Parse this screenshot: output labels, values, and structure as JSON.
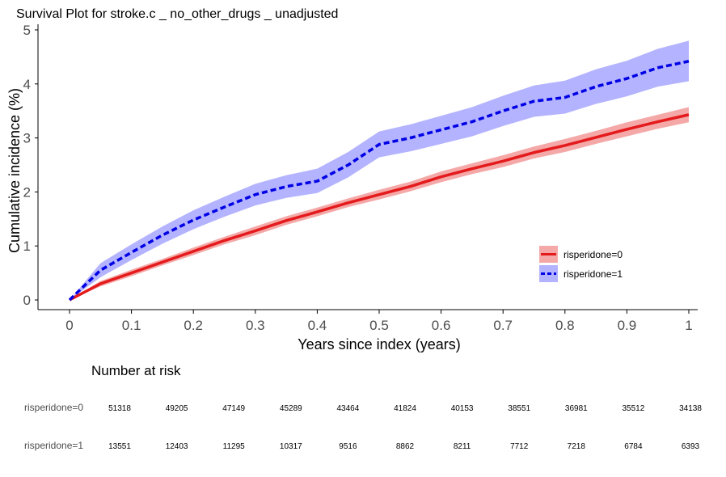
{
  "chart_data": {
    "type": "line",
    "title": "Survival Plot for stroke.c _ no_other_drugs _ unadjusted",
    "xlabel": "Years since index (years)",
    "ylabel": "Cumulative incidence (%)",
    "xlim": [
      0,
      1
    ],
    "ylim": [
      0,
      5
    ],
    "x_ticks": [
      "0",
      "0.1",
      "0.2",
      "0.3",
      "0.4",
      "0.5",
      "0.6",
      "0.7",
      "0.8",
      "0.9",
      "1"
    ],
    "y_ticks": [
      "0",
      "1",
      "2",
      "3",
      "4",
      "5"
    ],
    "legend_position": "bottom-right",
    "x": [
      0,
      0.05,
      0.1,
      0.15,
      0.2,
      0.25,
      0.3,
      0.35,
      0.4,
      0.45,
      0.5,
      0.55,
      0.6,
      0.65,
      0.7,
      0.75,
      0.8,
      0.85,
      0.9,
      0.95,
      1.0
    ],
    "series": [
      {
        "name": "risperidone=0",
        "color": "#e41a1c",
        "band_color": "#f4a9a8",
        "line_style": "solid",
        "values": [
          0,
          0.3,
          0.5,
          0.7,
          0.9,
          1.1,
          1.28,
          1.47,
          1.63,
          1.8,
          1.95,
          2.1,
          2.28,
          2.43,
          2.57,
          2.73,
          2.86,
          3.01,
          3.16,
          3.3,
          3.43
        ],
        "lower": [
          0,
          0.25,
          0.44,
          0.64,
          0.83,
          1.03,
          1.2,
          1.39,
          1.55,
          1.72,
          1.86,
          2.01,
          2.18,
          2.33,
          2.46,
          2.62,
          2.74,
          2.89,
          3.03,
          3.17,
          3.29
        ],
        "upper": [
          0,
          0.35,
          0.56,
          0.76,
          0.97,
          1.17,
          1.36,
          1.55,
          1.71,
          1.88,
          2.04,
          2.19,
          2.38,
          2.53,
          2.68,
          2.84,
          2.98,
          3.13,
          3.29,
          3.43,
          3.57
        ]
      },
      {
        "name": "risperidone=1",
        "color": "#0000e5",
        "band_color": "#b3b3ff",
        "line_style": "dashed",
        "values": [
          0,
          0.55,
          0.88,
          1.2,
          1.48,
          1.72,
          1.95,
          2.1,
          2.2,
          2.5,
          2.88,
          3.0,
          3.15,
          3.3,
          3.5,
          3.68,
          3.75,
          3.95,
          4.1,
          4.3,
          4.42
        ],
        "lower": [
          0,
          0.42,
          0.74,
          1.04,
          1.31,
          1.54,
          1.75,
          1.89,
          1.98,
          2.27,
          2.64,
          2.75,
          2.89,
          3.03,
          3.22,
          3.39,
          3.45,
          3.63,
          3.77,
          3.95,
          4.05
        ],
        "upper": [
          0,
          0.68,
          1.03,
          1.36,
          1.66,
          1.91,
          2.15,
          2.31,
          2.43,
          2.74,
          3.12,
          3.25,
          3.41,
          3.57,
          3.78,
          3.97,
          4.06,
          4.27,
          4.43,
          4.65,
          4.8
        ]
      }
    ]
  },
  "risk_table": {
    "title": "Number at risk",
    "rows": [
      {
        "label": "risperidone=0",
        "values": [
          "51318",
          "49205",
          "47149",
          "45289",
          "43464",
          "41824",
          "40153",
          "38551",
          "36981",
          "35512",
          "34138"
        ]
      },
      {
        "label": "risperidone=1",
        "values": [
          "13551",
          "12403",
          "11295",
          "10317",
          "9516",
          "8862",
          "8211",
          "7712",
          "7218",
          "6784",
          "6393"
        ]
      }
    ]
  }
}
